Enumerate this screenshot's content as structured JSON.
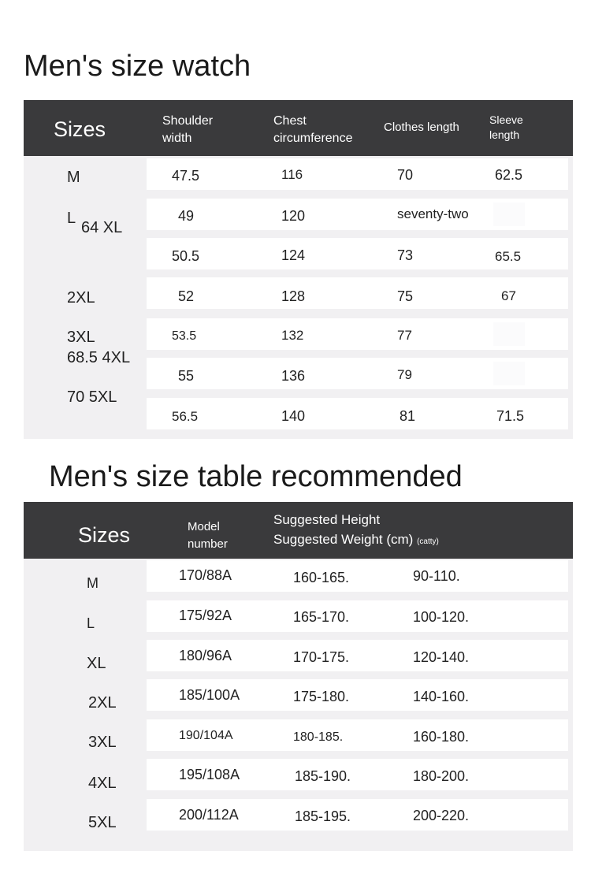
{
  "size_watch": {
    "title": "Men's size watch",
    "headers": {
      "sizes": "Sizes",
      "shoulder": "Shoulder\nwidth",
      "chest": "Chest\ncircumference",
      "clothes": "Clothes length",
      "sleeve": "Sleeve\nlength"
    },
    "size_labels": [
      "M",
      "L",
      "64 XL",
      "2XL",
      "3XL",
      "68.5 4XL",
      "70 5XL"
    ],
    "rows": [
      {
        "shoulder": "47.5",
        "chest": "116",
        "length": "70",
        "sleeve": "62.5"
      },
      {
        "shoulder": "49",
        "chest": "120",
        "length": "seventy-two",
        "sleeve": ""
      },
      {
        "shoulder": "50.5",
        "chest": "124",
        "length": "73",
        "sleeve": "65.5"
      },
      {
        "shoulder": "52",
        "chest": "128",
        "length": "75",
        "sleeve": "67"
      },
      {
        "shoulder": "53.5",
        "chest": "132",
        "length": "77",
        "sleeve": ""
      },
      {
        "shoulder": "55",
        "chest": "136",
        "length": "79",
        "sleeve": ""
      },
      {
        "shoulder": "56.5",
        "chest": "140",
        "length": "81",
        "sleeve": "71.5"
      }
    ]
  },
  "size_table": {
    "title": "Men's size table recommended",
    "headers": {
      "sizes": "Sizes",
      "model": "Model\nnumber",
      "height": "Suggested Height",
      "weight": "Suggested Weight (cm)",
      "catty": "(catty)"
    },
    "rows": [
      {
        "size": "M",
        "model": "170/88A",
        "height": "160-165.",
        "weight": "90-110."
      },
      {
        "size": "L",
        "model": "175/92A",
        "height": "165-170.",
        "weight": "100-120."
      },
      {
        "size": "XL",
        "model": "180/96A",
        "height": "170-175.",
        "weight": "120-140."
      },
      {
        "size": "2XL",
        "model": "185/100A",
        "height": "175-180.",
        "weight": "140-160."
      },
      {
        "size": "3XL",
        "model": "190/104A",
        "height": "180-185.",
        "weight": "160-180."
      },
      {
        "size": "4XL",
        "model": "195/108A",
        "height": "185-190.",
        "weight": "180-200."
      },
      {
        "size": "5XL",
        "model": "200/112A",
        "height": "185-195.",
        "weight": "200-220."
      }
    ]
  }
}
